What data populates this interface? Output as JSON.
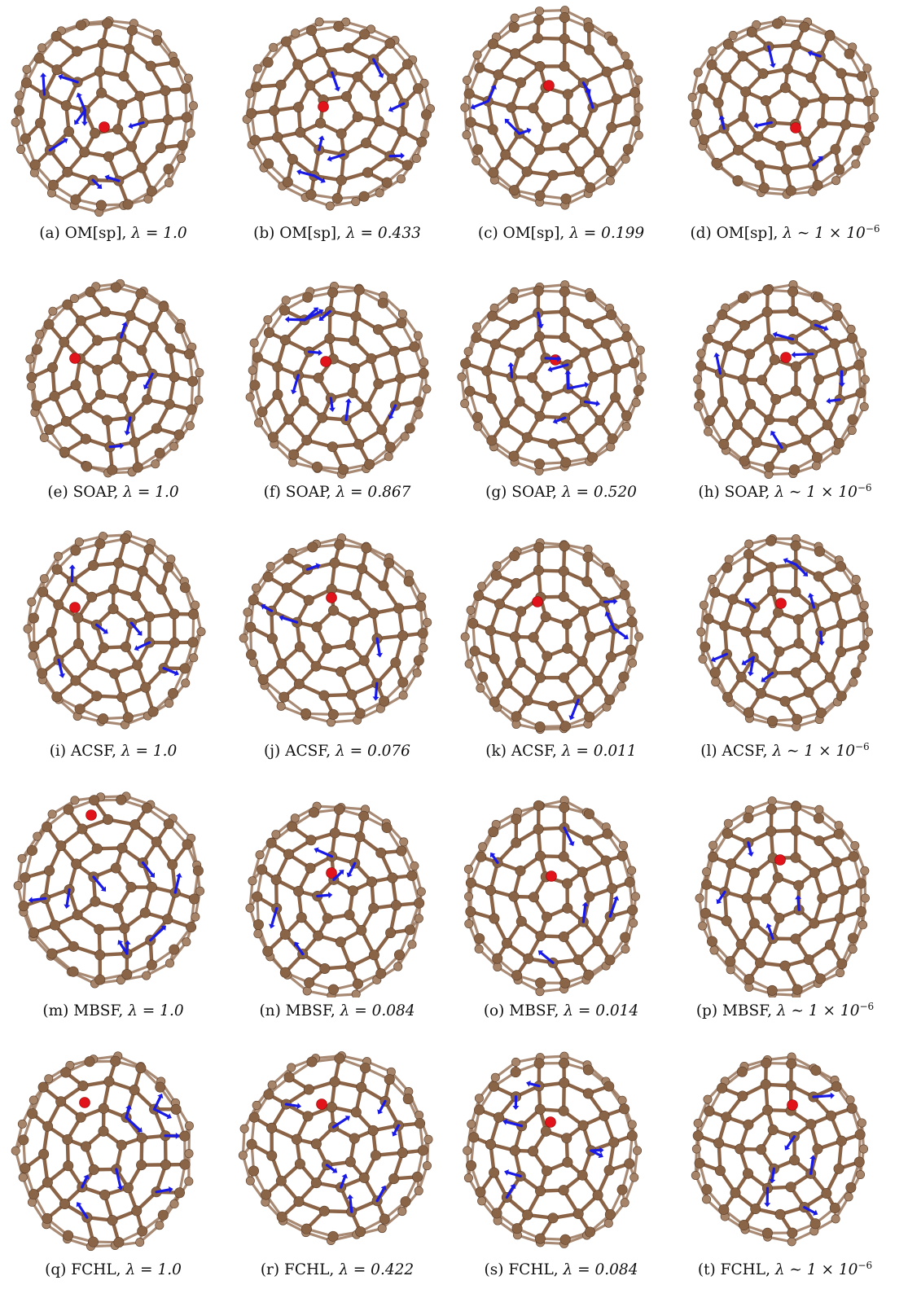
{
  "figure": {
    "panels": [
      {
        "label": "(a) OM[sp], ",
        "lambda": "λ = 1.0",
        "exp": ""
      },
      {
        "label": "(b) OM[sp], ",
        "lambda": "λ = 0.433",
        "exp": ""
      },
      {
        "label": "(c) OM[sp], ",
        "lambda": "λ = 0.199",
        "exp": ""
      },
      {
        "label": "(d) OM[sp], ",
        "lambda": "λ ∼ 1 × 10",
        "exp": "−6"
      },
      {
        "label": "(e) SOAP, ",
        "lambda": "λ = 1.0",
        "exp": ""
      },
      {
        "label": "(f) SOAP, ",
        "lambda": "λ = 0.867",
        "exp": ""
      },
      {
        "label": "(g) SOAP, ",
        "lambda": "λ = 0.520",
        "exp": ""
      },
      {
        "label": "(h) SOAP, ",
        "lambda": "λ ∼ 1 × 10",
        "exp": "−6"
      },
      {
        "label": "(i) ACSF, ",
        "lambda": "λ = 1.0",
        "exp": ""
      },
      {
        "label": "(j) ACSF, ",
        "lambda": "λ = 0.076",
        "exp": ""
      },
      {
        "label": "(k) ACSF, ",
        "lambda": "λ = 0.011",
        "exp": ""
      },
      {
        "label": "(l) ACSF, ",
        "lambda": "λ ∼ 1 × 10",
        "exp": "−6"
      },
      {
        "label": "(m) MBSF, ",
        "lambda": "λ = 1.0",
        "exp": ""
      },
      {
        "label": "(n) MBSF, ",
        "lambda": "λ = 0.084",
        "exp": ""
      },
      {
        "label": "(o) MBSF, ",
        "lambda": "λ = 0.014",
        "exp": ""
      },
      {
        "label": "(p) MBSF, ",
        "lambda": "λ ∼ 1 × 10",
        "exp": "−6"
      },
      {
        "label": "(q) FCHL, ",
        "lambda": "λ = 1.0",
        "exp": ""
      },
      {
        "label": "(r) FCHL, ",
        "lambda": "λ = 0.422",
        "exp": ""
      },
      {
        "label": "(s) FCHL, ",
        "lambda": "λ = 0.084",
        "exp": ""
      },
      {
        "label": "(t) FCHL, ",
        "lambda": "λ ∼ 1 × 10",
        "exp": "−6"
      }
    ]
  },
  "colors": {
    "bond": "#8b6346",
    "atom": "#8a6447",
    "atom_far": "#a6846a",
    "central_atom": "#e0141a",
    "arrow": "#1a1ae6"
  }
}
